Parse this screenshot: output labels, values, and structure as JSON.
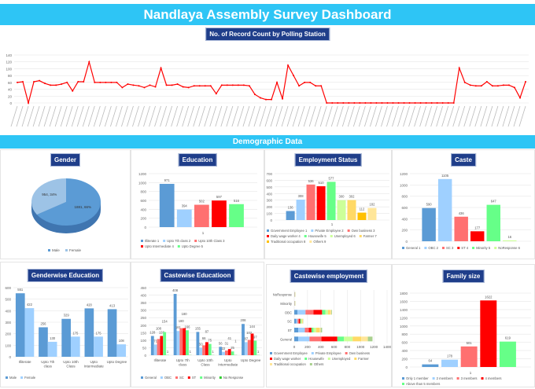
{
  "header": {
    "title": "Nandlaya Assembly Survey Dashboard",
    "section": "Demographic Data"
  },
  "colors": {
    "accent": "#2ec5f5",
    "title_bg": "#1f3e8a",
    "line": "#ff0000"
  },
  "panels": {
    "polling": "No. of Record Count by Polling Station",
    "gender": "Gender",
    "education": "Education",
    "employment": "Employment Status",
    "caste": "Caste",
    "genderwise": "Genderwise Education",
    "castewise_edu": "Castewise Educatioon",
    "castewise_emp": "Castewise employment",
    "family": "Family size"
  },
  "chart_data": [
    {
      "id": "polling",
      "type": "line",
      "ylim": [
        0,
        140
      ],
      "yticks": [
        0,
        20,
        40,
        60,
        80,
        100,
        120,
        140
      ],
      "values": [
        60,
        62,
        0,
        62,
        65,
        57,
        52,
        52,
        55,
        60,
        35,
        62,
        62,
        120,
        60,
        60,
        60,
        60,
        60,
        45,
        55,
        52,
        50,
        45,
        52,
        47,
        102,
        52,
        52,
        55,
        47,
        45,
        50,
        50,
        50,
        50,
        27,
        52,
        52,
        52,
        52,
        52,
        50,
        25,
        15,
        10,
        10,
        60,
        12,
        110,
        80,
        50,
        60,
        60,
        50,
        50,
        0,
        0,
        0,
        0,
        0,
        0,
        0,
        0,
        0,
        0,
        0,
        0,
        0,
        0,
        0,
        0,
        0,
        0,
        0,
        0,
        0,
        0,
        0,
        0,
        102,
        60,
        52,
        50,
        50,
        62,
        50,
        50,
        52,
        52,
        45,
        15,
        62
      ],
      "color": "#ff0000"
    },
    {
      "id": "gender",
      "type": "pie",
      "slices": [
        {
          "name": "Male",
          "value": 66,
          "label": "1881, 66%",
          "color": "#5b9bd5"
        },
        {
          "name": "Female",
          "value": 34,
          "label": "954, 34%",
          "color": "#9dc3e6"
        }
      ]
    },
    {
      "id": "education",
      "type": "bar",
      "ylim": [
        0,
        1200
      ],
      "yticks": [
        0,
        200,
        400,
        600,
        800,
        1000,
        1200
      ],
      "categories": [
        "1"
      ],
      "series": [
        {
          "name": "Illiterate 1",
          "values": [
            971
          ],
          "color": "#5b9bd5"
        },
        {
          "name": "Upto 7th class 2",
          "values": [
            394
          ],
          "color": "#9fd0ff"
        },
        {
          "name": "Upto 10th Class 3",
          "values": [
            502
          ],
          "color": "#ff7070"
        },
        {
          "name": "Upto Intermediate 4",
          "values": [
            597
          ],
          "color": "#ff0000"
        },
        {
          "name": "Upto Degree 5",
          "values": [
            516
          ],
          "color": "#66ff88"
        }
      ]
    },
    {
      "id": "employment",
      "type": "bar",
      "ylim": [
        0,
        700
      ],
      "yticks": [
        0,
        100,
        200,
        300,
        400,
        500,
        600,
        700
      ],
      "categories": [
        "1"
      ],
      "series": [
        {
          "name": "Government Employee 1",
          "values": [
            136
          ],
          "color": "#5b9bd5"
        },
        {
          "name": "Private Employee 2",
          "values": [
            308
          ],
          "color": "#9fd0ff"
        },
        {
          "name": "Own business 3",
          "values": [
            536
          ],
          "color": "#ff7070"
        },
        {
          "name": "Daily wage worker 4",
          "values": [
            510
          ],
          "color": "#ff0000"
        },
        {
          "name": "Housewife 5",
          "values": [
            577
          ],
          "color": "#66ff88"
        },
        {
          "name": "Unemployed 6",
          "values": [
            300
          ],
          "color": "#ccff99"
        },
        {
          "name": "Farmer 7",
          "values": [
            302
          ],
          "color": "#ffd966"
        },
        {
          "name": "Traditional occupation 8",
          "values": [
            112
          ],
          "color": "#ffc000"
        },
        {
          "name": "Others 9",
          "values": [
            182
          ],
          "color": "#ffe699"
        }
      ]
    },
    {
      "id": "caste",
      "type": "bar",
      "ylim": [
        0,
        1200
      ],
      "yticks": [
        0,
        200,
        400,
        600,
        800,
        1000,
        1200
      ],
      "categories": [
        "1"
      ],
      "series": [
        {
          "name": "General 1",
          "values": [
            590
          ],
          "color": "#5b9bd5"
        },
        {
          "name": "OBC 2",
          "values": [
            1105
          ],
          "color": "#9fd0ff"
        },
        {
          "name": "SC 3",
          "values": [
            436
          ],
          "color": "#ff7070"
        },
        {
          "name": "ST 4",
          "values": [
            177
          ],
          "color": "#ff0000"
        },
        {
          "name": "Minority 5",
          "values": [
            647
          ],
          "color": "#66ff88"
        },
        {
          "name": "NoResponse 6",
          "values": [
            16
          ],
          "color": "#ccff99"
        }
      ]
    },
    {
      "id": "genderwise",
      "type": "bar",
      "ylim": [
        0,
        600
      ],
      "yticks": [
        0,
        100,
        200,
        300,
        400,
        500,
        600
      ],
      "categories": [
        "Illiterate",
        "Upto 7th class",
        "Upto 10th Class",
        "Upto Intermediate",
        "Upto Degree"
      ],
      "series": [
        {
          "name": "Male",
          "values": [
            551,
            256,
            329,
            420,
            413
          ],
          "color": "#5b9bd5"
        },
        {
          "name": "Female",
          "values": [
            422,
            130,
            175,
            175,
            108
          ],
          "color": "#9fd0ff"
        }
      ]
    },
    {
      "id": "castewise_edu",
      "type": "bar",
      "ylim": [
        0,
        450
      ],
      "yticks": [
        0,
        50,
        100,
        150,
        200,
        250,
        300,
        350,
        400,
        450
      ],
      "categories": [
        "Illiterate",
        "Upto 7th class",
        "Upto 10th Class",
        "Upto Intermediate",
        "Upto Degree"
      ],
      "series": [
        {
          "name": "General",
          "values": [
            128,
            408,
            155,
            56,
            208
          ],
          "color": "#5b9bd5"
        },
        {
          "name": "OBC",
          "values": [
            71,
            161,
            50,
            22,
            87
          ],
          "color": "#9fd0ff"
        },
        {
          "name": "SC",
          "values": [
            108,
            180,
            66,
            31,
            102
          ],
          "color": "#ff7070"
        },
        {
          "name": "ST",
          "values": [
            128,
            180,
            87,
            41,
            144
          ],
          "color": "#ff0000"
        },
        {
          "name": "Minority",
          "values": [
            154,
            166,
            75,
            25,
            97
          ],
          "color": "#66ff88"
        },
        {
          "name": "No Response",
          "values": [
            1,
            1,
            1,
            1,
            1
          ],
          "color": "#33cc33"
        }
      ]
    },
    {
      "id": "castewise_emp",
      "type": "hstack",
      "xlim": [
        0,
        1400
      ],
      "xticks": [
        0,
        200,
        400,
        600,
        800,
        1000,
        1200,
        1400
      ],
      "categories": [
        "General",
        "ST",
        "SC",
        "OBC",
        "Minority",
        "NoResponse"
      ],
      "series": [
        {
          "name": "Government Employee",
          "values": [
            60,
            60,
            30,
            50,
            2,
            2
          ],
          "color": "#5b9bd5"
        },
        {
          "name": "Private Employee",
          "values": [
            170,
            100,
            20,
            120,
            2,
            2
          ],
          "color": "#9fd0ff"
        },
        {
          "name": "Own business",
          "values": [
            180,
            60,
            20,
            120,
            2,
            2
          ],
          "color": "#ff7070"
        },
        {
          "name": "Daily wage worker",
          "values": [
            240,
            40,
            20,
            130,
            2,
            2
          ],
          "color": "#ff0000"
        },
        {
          "name": "Housewife",
          "values": [
            100,
            30,
            15,
            50,
            2,
            2
          ],
          "color": "#66ff88"
        },
        {
          "name": "Unemployed",
          "values": [
            130,
            40,
            10,
            40,
            2,
            2
          ],
          "color": "#ccff99"
        },
        {
          "name": "Farmer",
          "values": [
            130,
            50,
            10,
            30,
            2,
            2
          ],
          "color": "#ffd966"
        },
        {
          "name": "Traditional occupation",
          "values": [
            100,
            20,
            5,
            20,
            2,
            2
          ],
          "color": "#ffe699"
        },
        {
          "name": "Others",
          "values": [
            70,
            20,
            5,
            10,
            2,
            2
          ],
          "color": "#a9d18e"
        }
      ]
    },
    {
      "id": "family",
      "type": "bar",
      "ylim": [
        0,
        1800
      ],
      "yticks": [
        0,
        200,
        400,
        600,
        800,
        1000,
        1200,
        1400,
        1600,
        1800
      ],
      "categories": [
        "1"
      ],
      "series": [
        {
          "name": "Only 1 member",
          "values": [
            64
          ],
          "color": "#5b9bd5"
        },
        {
          "name": "2 members",
          "values": [
            178
          ],
          "color": "#9fd0ff"
        },
        {
          "name": "3 members",
          "values": [
            501
          ],
          "color": "#ff7070"
        },
        {
          "name": "4 members",
          "values": [
            1622
          ],
          "color": "#ff0000"
        },
        {
          "name": "Above than 5 members",
          "values": [
            619
          ],
          "color": "#66ff88"
        }
      ]
    }
  ]
}
